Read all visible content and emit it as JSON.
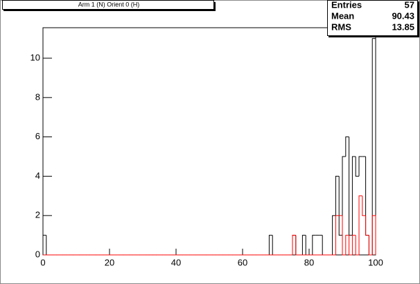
{
  "chart_data": {
    "type": "histogram",
    "title": "Arm 1 (N) Orient 0 (H)",
    "bins": [
      0,
      1,
      2,
      3,
      4,
      5,
      6,
      7,
      8,
      9,
      10,
      11,
      12,
      13,
      14,
      15,
      16,
      17,
      18,
      19,
      20,
      21,
      22,
      23,
      24,
      25,
      26,
      27,
      28,
      29,
      30,
      31,
      32,
      33,
      34,
      35,
      36,
      37,
      38,
      39,
      40,
      41,
      42,
      43,
      44,
      45,
      46,
      47,
      48,
      49,
      50,
      51,
      52,
      53,
      54,
      55,
      56,
      57,
      58,
      59,
      60,
      61,
      62,
      63,
      64,
      65,
      66,
      67,
      68,
      69,
      70,
      71,
      72,
      73,
      74,
      75,
      76,
      77,
      78,
      79,
      80,
      81,
      82,
      83,
      84,
      85,
      86,
      87,
      88,
      89,
      90,
      91,
      92,
      93,
      94,
      95,
      96,
      97,
      98,
      99,
      100
    ],
    "series": [
      {
        "color": "#000000",
        "values": [
          1,
          0,
          0,
          0,
          0,
          0,
          0,
          0,
          0,
          0,
          0,
          0,
          0,
          0,
          0,
          0,
          0,
          0,
          0,
          0,
          0,
          0,
          0,
          0,
          0,
          0,
          0,
          0,
          0,
          0,
          0,
          0,
          0,
          0,
          0,
          0,
          0,
          0,
          0,
          0,
          0,
          0,
          0,
          0,
          0,
          0,
          0,
          0,
          0,
          0,
          0,
          0,
          0,
          0,
          0,
          0,
          0,
          0,
          0,
          0,
          0,
          0,
          0,
          0,
          0,
          0,
          0,
          0,
          1,
          0,
          0,
          0,
          0,
          0,
          0,
          1,
          0,
          0,
          1,
          0,
          0,
          1,
          1,
          1,
          0,
          0,
          0,
          2,
          4,
          1,
          5,
          6,
          1,
          5,
          4,
          5,
          5,
          1,
          0,
          11
        ]
      },
      {
        "color": "#ff0000",
        "values": [
          0,
          0,
          0,
          0,
          0,
          0,
          0,
          0,
          0,
          0,
          0,
          0,
          0,
          0,
          0,
          0,
          0,
          0,
          0,
          0,
          0,
          0,
          0,
          0,
          0,
          0,
          0,
          0,
          0,
          0,
          0,
          0,
          0,
          0,
          0,
          0,
          0,
          0,
          0,
          0,
          0,
          0,
          0,
          0,
          0,
          0,
          0,
          0,
          0,
          0,
          0,
          0,
          0,
          0,
          0,
          0,
          0,
          0,
          0,
          0,
          0,
          0,
          0,
          0,
          0,
          0,
          0,
          0,
          0,
          0,
          0,
          0,
          0,
          0,
          0,
          1,
          0,
          0,
          0,
          0,
          0,
          0,
          0,
          0,
          0,
          0,
          0,
          0,
          2,
          2,
          0,
          1,
          0,
          1,
          0,
          3,
          2,
          1,
          0,
          2
        ]
      }
    ],
    "xlim": [
      0,
      100
    ],
    "ylim": [
      0,
      11.55
    ],
    "xticks": [
      0,
      20,
      40,
      60,
      80,
      100
    ],
    "yticks": [
      0,
      2,
      4,
      6,
      8,
      10
    ],
    "stats": {
      "labels": [
        "Entries",
        "Mean",
        "RMS"
      ],
      "values": [
        57,
        90.43,
        13.85
      ]
    }
  }
}
